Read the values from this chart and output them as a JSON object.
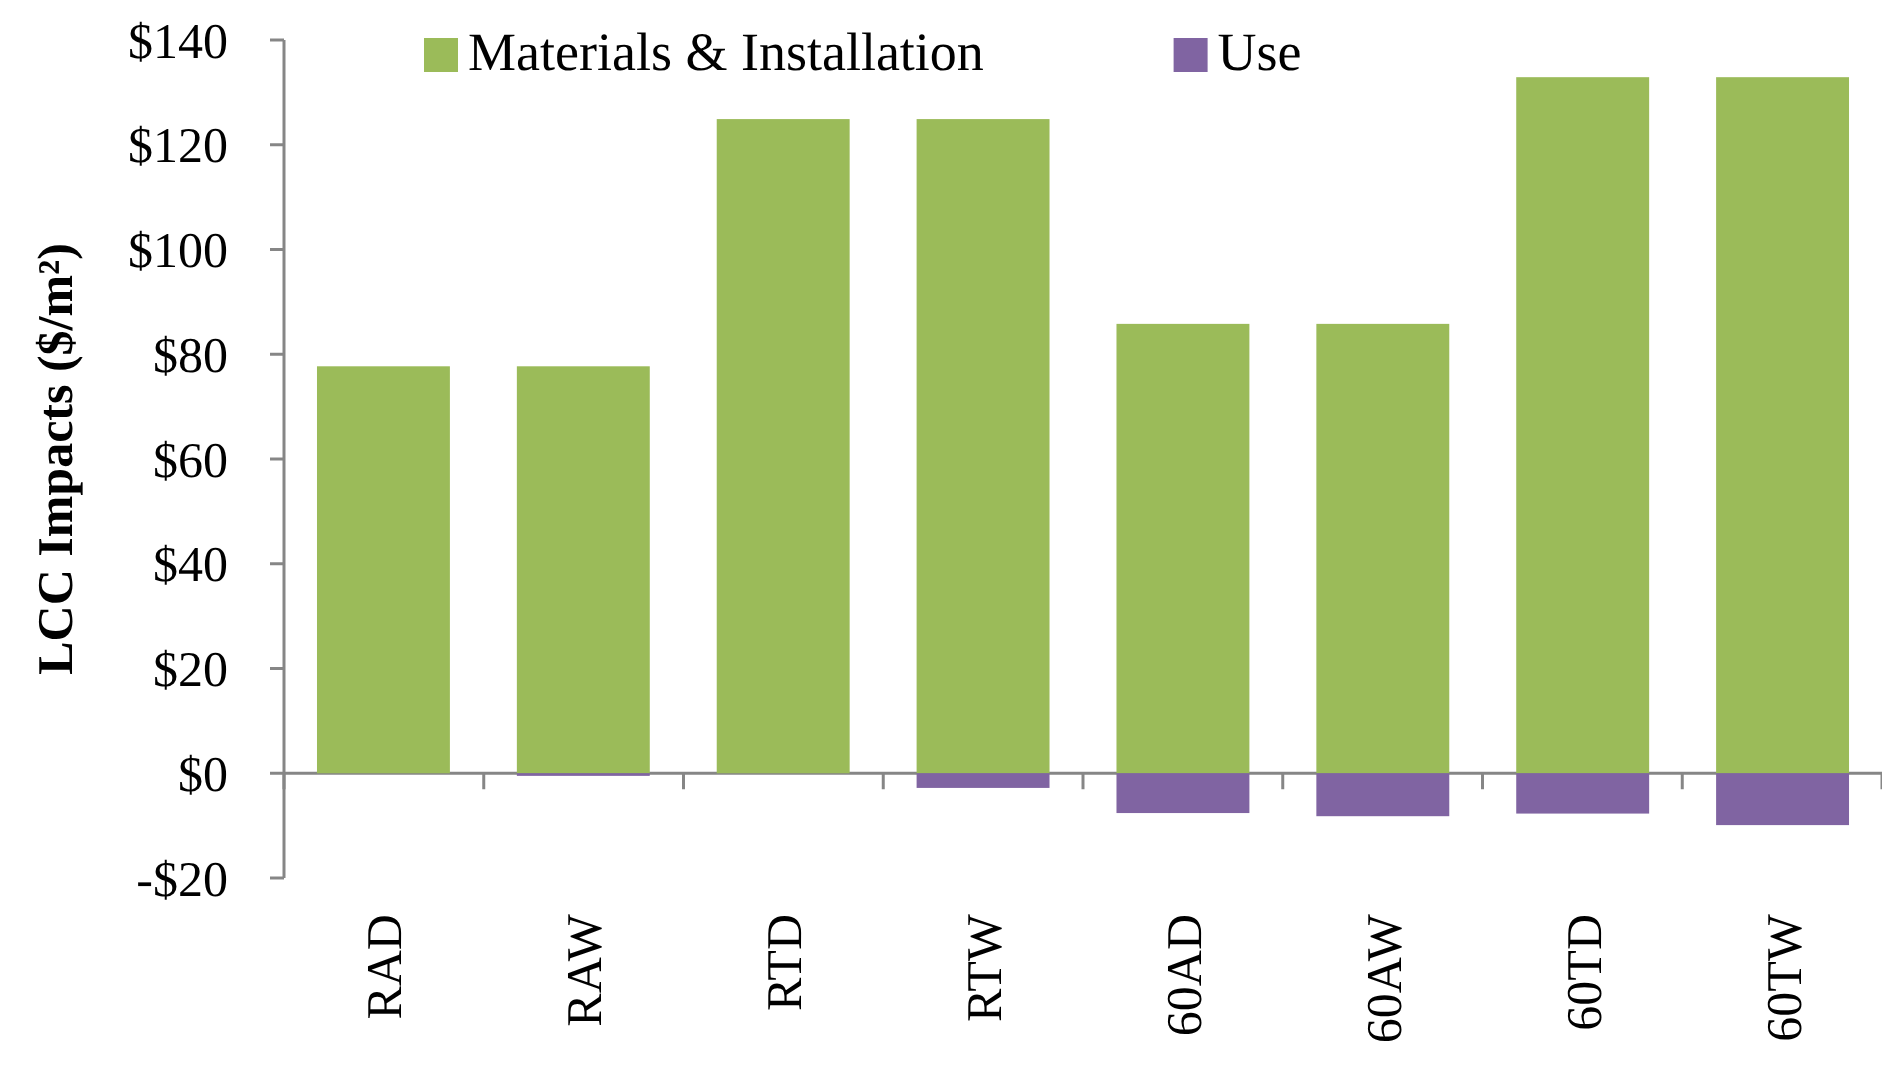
{
  "chart_data": {
    "type": "bar",
    "stacked": true,
    "ylabel": "LCC Impacts ($/m²)",
    "categories": [
      "RAD",
      "RAW",
      "RTD",
      "RTW",
      "60AD",
      "60AW",
      "60TD",
      "60TW"
    ],
    "series": [
      {
        "name": "Materials & Installation",
        "color": "#9bbb59",
        "values": [
          77.7,
          77.7,
          124.9,
          124.9,
          85.8,
          85.8,
          132.9,
          132.9
        ]
      },
      {
        "name": "Use",
        "color": "#8064a2",
        "values": [
          0,
          -0.5,
          0,
          -2.8,
          -7.6,
          -8.2,
          -7.7,
          -9.9
        ]
      }
    ],
    "ylim": [
      -20,
      140
    ],
    "yticks": [
      {
        "value": -20,
        "label": "-$20"
      },
      {
        "value": 0,
        "label": "$0"
      },
      {
        "value": 20,
        "label": "$20"
      },
      {
        "value": 40,
        "label": "$40"
      },
      {
        "value": 60,
        "label": "$60"
      },
      {
        "value": 80,
        "label": "$80"
      },
      {
        "value": 100,
        "label": "$100"
      },
      {
        "value": 120,
        "label": "$120"
      },
      {
        "value": 140,
        "label": "$140"
      }
    ],
    "legend": "top"
  }
}
